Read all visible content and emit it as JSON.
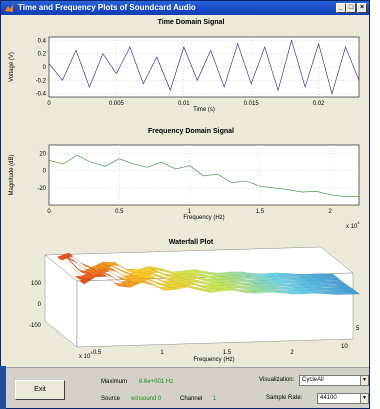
{
  "window": {
    "title": "Time and Frequency Plots of Soundcard Audio",
    "buttons": [
      "_",
      "□",
      "×"
    ]
  },
  "colors": {
    "time_series": "#1a1aa8",
    "freq_series": "#2a8a2a",
    "value_text": "#1a8f1a",
    "title_bar": "#1649c4"
  },
  "chart_data": [
    {
      "type": "line",
      "title": "Time Domain Signal",
      "xlabel": "Time (s)",
      "ylabel": "Voltage (V)",
      "xlim": [
        0,
        0.023
      ],
      "ylim": [
        -0.45,
        0.45
      ],
      "xticks": [
        "0",
        "0.005",
        "0.01",
        "0.015",
        "0.02"
      ],
      "yticks": [
        "0.4",
        "0.2",
        "0",
        "-0.2",
        "-0.4"
      ],
      "grid": true,
      "series": [
        {
          "x": [
            0,
            0.001,
            0.002,
            0.003,
            0.004,
            0.005,
            0.006,
            0.007,
            0.008,
            0.009,
            0.01,
            0.011,
            0.012,
            0.013,
            0.014,
            0.015,
            0.016,
            0.017,
            0.018,
            0.019,
            0.02,
            0.021,
            0.022,
            0.023
          ],
          "values": [
            0.05,
            -0.2,
            0.25,
            -0.3,
            0.2,
            -0.1,
            0.3,
            -0.25,
            0.15,
            -0.35,
            0.3,
            -0.2,
            0.25,
            -0.3,
            0.35,
            -0.25,
            0.3,
            -0.35,
            0.4,
            -0.3,
            0.35,
            -0.4,
            0.3,
            -0.2
          ]
        }
      ]
    },
    {
      "type": "line",
      "title": "Frequency Domain Signal",
      "xlabel": "Frequency (Hz)",
      "ylabel": "Magnitude (dB)",
      "xlim": [
        0,
        22050
      ],
      "ylim": [
        -40,
        30
      ],
      "xticks": [
        "0",
        "0.5",
        "1",
        "1.5",
        "2"
      ],
      "xmultiplier": "x 10",
      "xexponent": "4",
      "yticks": [
        "20",
        "0",
        "-20"
      ],
      "grid": true,
      "series": [
        {
          "x": [
            0,
            1000,
            2000,
            3000,
            4000,
            5000,
            6000,
            7000,
            8000,
            9000,
            10000,
            11000,
            12000,
            13000,
            14000,
            15000,
            16000,
            17000,
            18000,
            19000,
            20000,
            21000,
            22050
          ],
          "values": [
            12,
            8,
            18,
            10,
            5,
            14,
            8,
            4,
            10,
            2,
            6,
            -6,
            -4,
            -14,
            -12,
            -18,
            -20,
            -22,
            -25,
            -24,
            -28,
            -30,
            -30
          ]
        }
      ]
    },
    {
      "type": "area",
      "title": "Waterfall Plot",
      "xlabel": "Frequency (Hz)",
      "xticks": [
        "0.5",
        "1",
        "1.5",
        "2"
      ],
      "xmultiplier": "x 10",
      "xexponent": "4",
      "zticks": [
        "100",
        "0",
        "-100"
      ],
      "depth_ticks": [
        "5",
        "10"
      ]
    }
  ],
  "controls": {
    "exit_label": "Exit",
    "maximum_label": "Maximum",
    "maximum_value": "8.6e+001 Hz",
    "source_label": "Source",
    "source_value": "winsound 0",
    "channel_label": "Channel",
    "channel_value": "1",
    "visualization_label": "Visualization:",
    "visualization_value": "CycleAll",
    "sample_rate_label": "Sample Rate:",
    "sample_rate_value": "44100"
  }
}
